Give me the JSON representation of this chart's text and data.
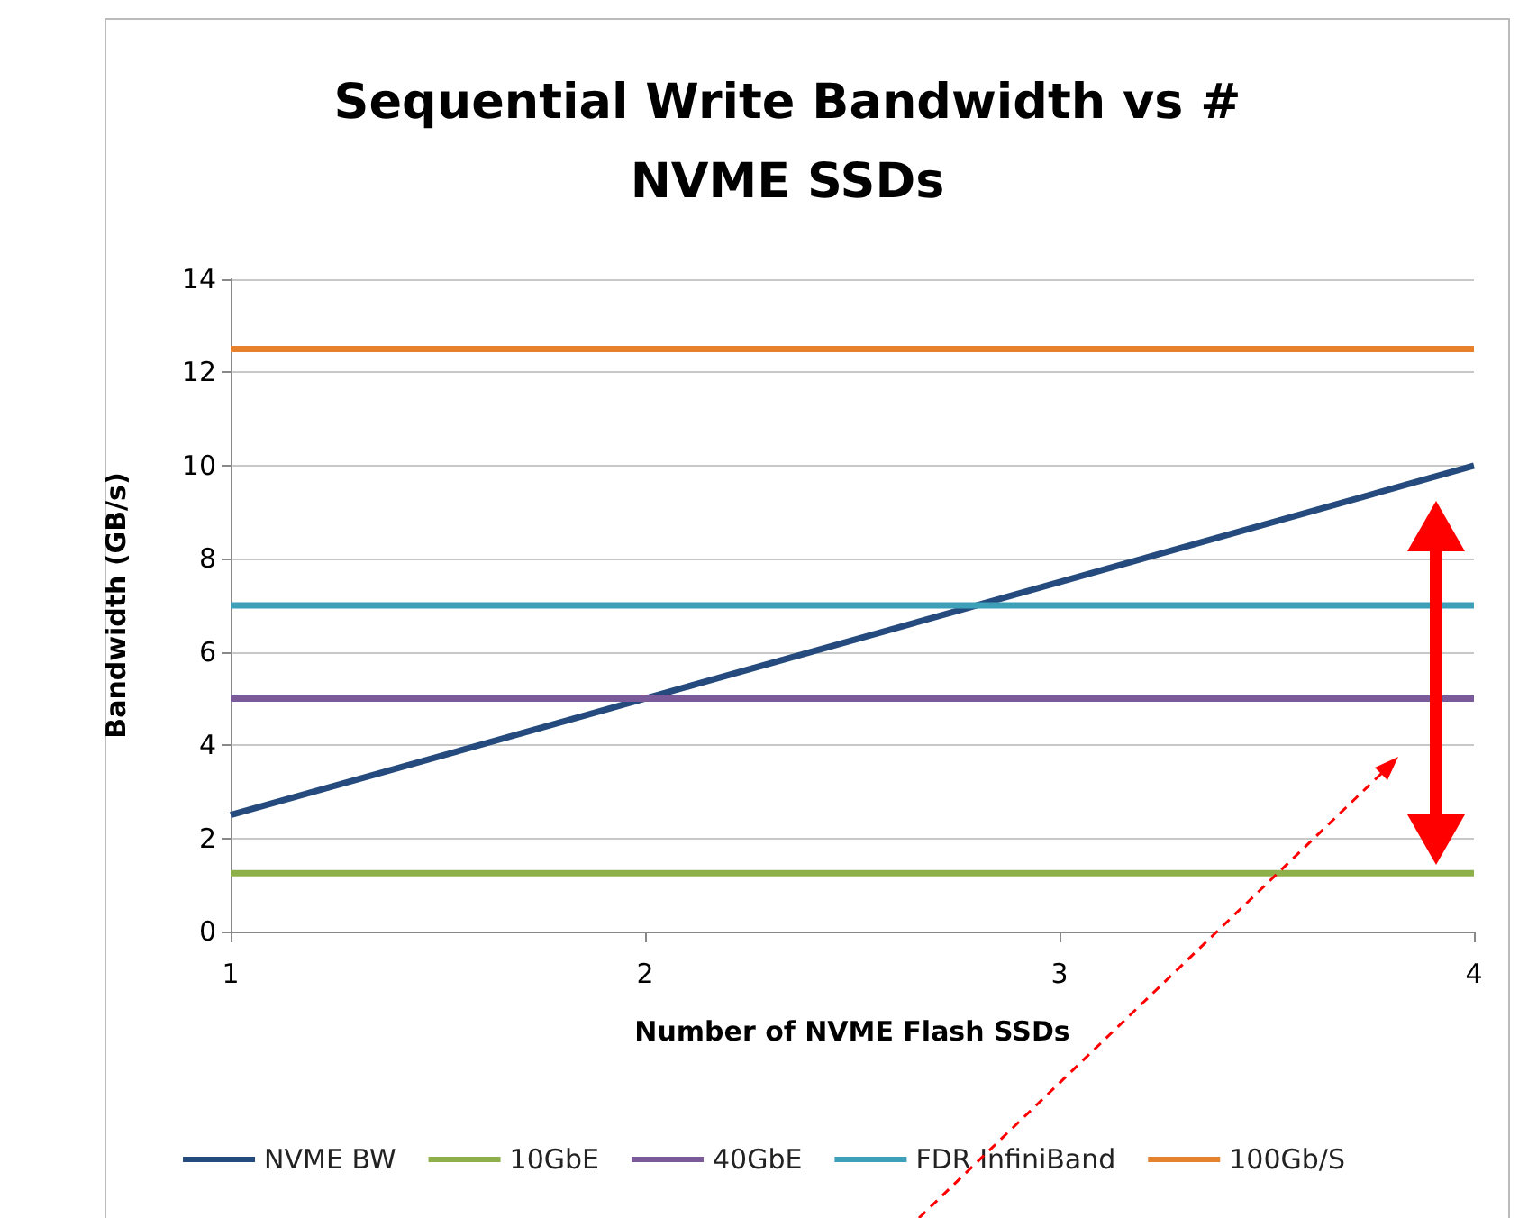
{
  "chart_data": {
    "type": "line",
    "title": "Sequential Write Bandwidth vs # NVME SSDs",
    "xlabel": "Number of NVME Flash SSDs",
    "ylabel": "Bandwidth (GB/s)",
    "series": [
      {
        "name": "NVME BW",
        "color": "#254a7e",
        "x": [
          1,
          2,
          3,
          4
        ],
        "values": [
          2.5,
          5,
          7.5,
          10
        ]
      },
      {
        "name": "10GbE",
        "color": "#8db04a",
        "x": [
          1,
          4
        ],
        "values": [
          1.25,
          1.25
        ]
      },
      {
        "name": "40GbE",
        "color": "#7a5a98",
        "x": [
          1,
          4
        ],
        "values": [
          5,
          5
        ]
      },
      {
        "name": "FDR InfiniBand",
        "color": "#3ca0b8",
        "x": [
          1,
          4
        ],
        "values": [
          7,
          7
        ]
      },
      {
        "name": "100Gb/S",
        "color": "#e6822e",
        "x": [
          1,
          4
        ],
        "values": [
          12.5,
          12.5
        ]
      }
    ],
    "xlim": [
      1,
      4
    ],
    "xticks": [
      1,
      2,
      3,
      4
    ],
    "ylim": [
      0,
      14
    ],
    "yticks": [
      0,
      2,
      4,
      6,
      8,
      10,
      12,
      14
    ],
    "grid": "y",
    "legend": "bottom",
    "marker": "none",
    "line_style": "solid"
  }
}
